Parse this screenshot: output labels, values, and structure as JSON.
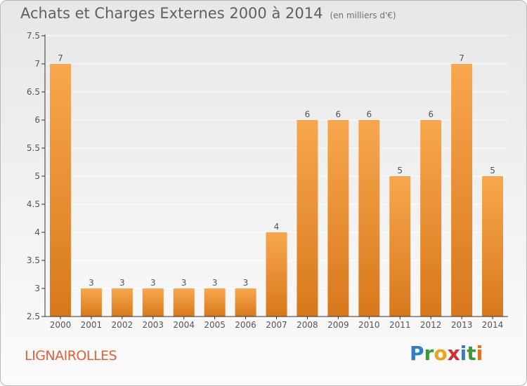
{
  "title": "Achats et Charges Externes 2000 à 2014",
  "unit": "(en milliers d'€)",
  "commune": "LIGNAIROLLES",
  "logo": {
    "letters": [
      "P",
      "r",
      "o",
      "x",
      "i",
      "t",
      "i"
    ],
    "colors": [
      "#2f7fc8",
      "#3a9a3a",
      "#f0a020",
      "#d03030",
      "#2f7fc8",
      "#3a9a3a",
      "#e07020"
    ]
  },
  "colors": {
    "bar_light": "#f8a74e",
    "bar_dark": "#d8781c",
    "axis": "#333333",
    "grid": "#ffffff",
    "text": "#555555"
  },
  "chart_data": {
    "type": "bar",
    "title": "Achats et Charges Externes 2000 à 2014",
    "categories": [
      "2000",
      "2001",
      "2002",
      "2003",
      "2004",
      "2005",
      "2006",
      "2007",
      "2008",
      "2009",
      "2010",
      "2011",
      "2012",
      "2013",
      "2014"
    ],
    "values": [
      7,
      3,
      3,
      3,
      3,
      3,
      3,
      4,
      6,
      6,
      6,
      5,
      6,
      7,
      5
    ],
    "ylim": [
      2.5,
      7.5
    ],
    "yticks": [
      "2.5",
      "3",
      "3.5",
      "4",
      "4.5",
      "5",
      "5.5",
      "6",
      "6.5",
      "7",
      "7.5"
    ],
    "grid": true,
    "data_labels": true
  }
}
